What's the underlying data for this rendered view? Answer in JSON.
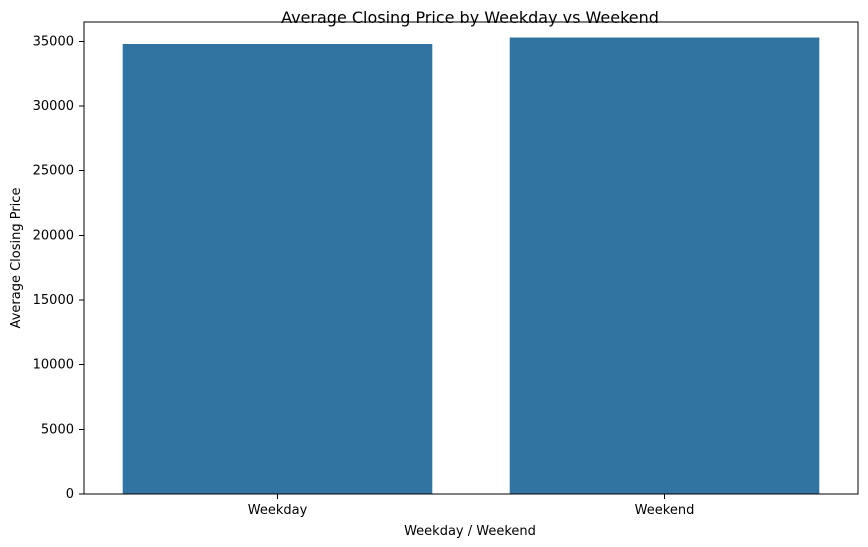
{
  "chart_data": {
    "type": "bar",
    "title": "Average Closing Price by Weekday vs Weekend",
    "xlabel": "Weekday / Weekend",
    "ylabel": "Average Closing Price",
    "categories": [
      "Weekday",
      "Weekend"
    ],
    "values": [
      34800,
      35300
    ],
    "ylim": [
      0,
      36500
    ],
    "yticks": [
      0,
      5000,
      10000,
      15000,
      20000,
      25000,
      30000,
      35000
    ],
    "grid": false,
    "bar_color": "#3274a1"
  }
}
